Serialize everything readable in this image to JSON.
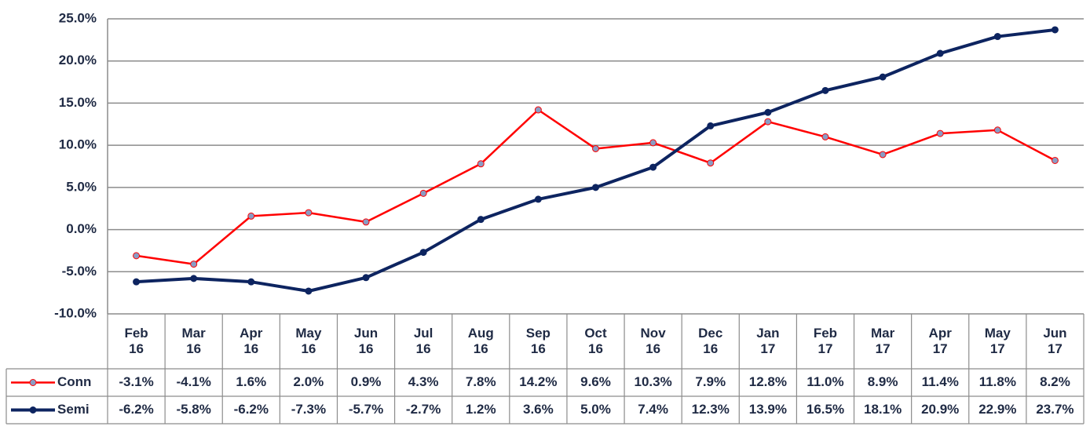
{
  "chart_data": {
    "type": "line",
    "categories": [
      "Feb 16",
      "Mar 16",
      "Apr 16",
      "May 16",
      "Jun 16",
      "Jul 16",
      "Aug 16",
      "Sep 16",
      "Oct 16",
      "Nov 16",
      "Dec 16",
      "Jan 17",
      "Feb 17",
      "Mar 17",
      "Apr 17",
      "May 17",
      "Jun 17"
    ],
    "series": [
      {
        "name": "Conn",
        "color": "#ff0000",
        "marker_color": "#8a9cc4",
        "values": [
          -3.1,
          -4.1,
          1.6,
          2.0,
          0.9,
          4.3,
          7.8,
          14.2,
          9.6,
          10.3,
          7.9,
          12.8,
          11.0,
          8.9,
          11.4,
          11.8,
          8.2
        ],
        "value_labels": [
          "-3.1%",
          "-4.1%",
          "1.6%",
          "2.0%",
          "0.9%",
          "4.3%",
          "7.8%",
          "14.2%",
          "9.6%",
          "10.3%",
          "7.9%",
          "12.8%",
          "11.0%",
          "8.9%",
          "11.4%",
          "11.8%",
          "8.2%"
        ]
      },
      {
        "name": "Semi",
        "color": "#0d2460",
        "marker_color": "#0d2460",
        "values": [
          -6.2,
          -5.8,
          -6.2,
          -7.3,
          -5.7,
          -2.7,
          1.2,
          3.6,
          5.0,
          7.4,
          12.3,
          13.9,
          16.5,
          18.1,
          20.9,
          22.9,
          23.7
        ],
        "value_labels": [
          "-6.2%",
          "-5.8%",
          "-6.2%",
          "-7.3%",
          "-5.7%",
          "-2.7%",
          "1.2%",
          "3.6%",
          "5.0%",
          "7.4%",
          "12.3%",
          "13.9%",
          "16.5%",
          "18.1%",
          "20.9%",
          "22.9%",
          "23.7%"
        ]
      }
    ],
    "ylim": [
      -10,
      25
    ],
    "yticks": [
      {
        "value": -10,
        "label": "-10.0%"
      },
      {
        "value": -5,
        "label": "-5.0%"
      },
      {
        "value": 0,
        "label": "0.0%"
      },
      {
        "value": 5,
        "label": "5.0%"
      },
      {
        "value": 10,
        "label": "10.0%"
      },
      {
        "value": 15,
        "label": "15.0%"
      },
      {
        "value": 20,
        "label": "20.0%"
      },
      {
        "value": 25,
        "label": "25.0%"
      }
    ],
    "grid": true
  }
}
